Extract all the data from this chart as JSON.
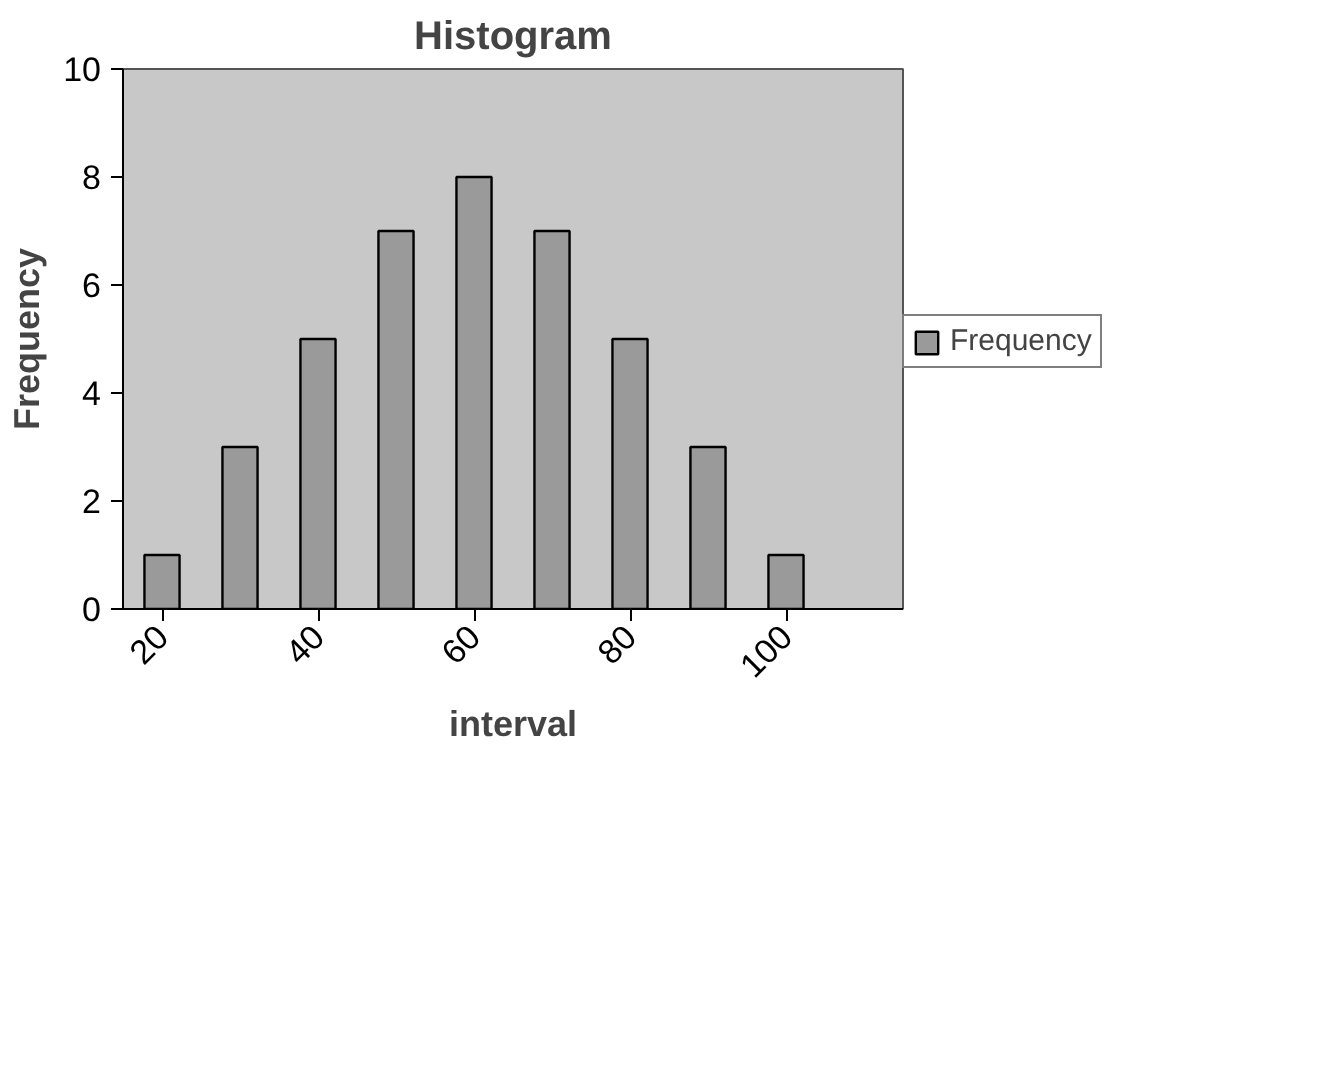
{
  "chart_data": {
    "type": "bar",
    "title": "Histogram",
    "xlabel": "interval",
    "ylabel": "Frequency",
    "categories": [
      "20",
      null,
      "40",
      null,
      "60",
      null,
      "80",
      null,
      "100",
      null
    ],
    "series": [
      {
        "name": "Frequency",
        "color": "#9a9a9a",
        "values": [
          1,
          3,
          5,
          7,
          8,
          7,
          5,
          3,
          1,
          null
        ]
      }
    ],
    "ylim": [
      0,
      10
    ],
    "yticks": [
      0,
      2,
      4,
      6,
      8,
      10
    ],
    "grid": false,
    "legend": "right"
  }
}
